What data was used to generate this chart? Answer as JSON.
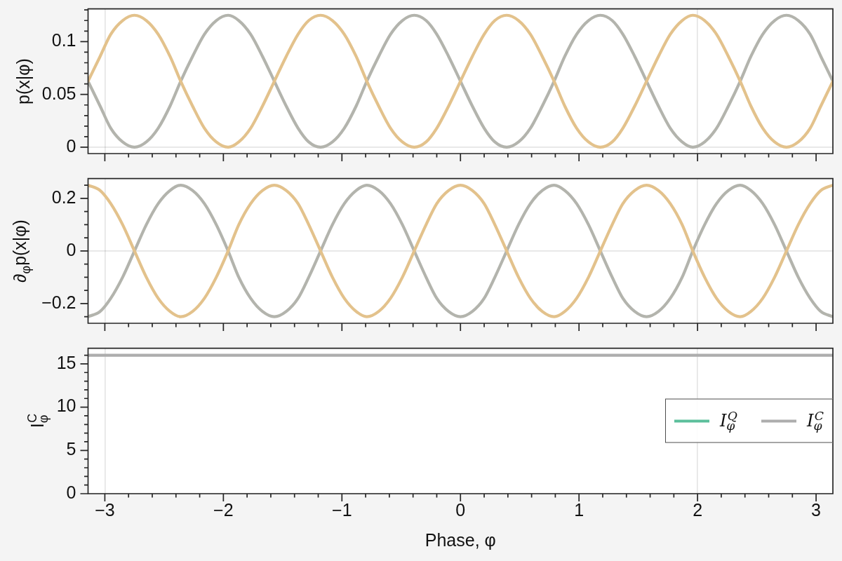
{
  "chart_data": [
    {
      "type": "line",
      "ylabel": "p(x|φ)",
      "x": [
        -3.1416,
        -3.04,
        -2.95,
        -2.85,
        -2.75,
        -2.65,
        -2.55,
        -2.45,
        -2.36,
        -2.26,
        -2.16,
        -2.06,
        -1.96,
        -1.87,
        -1.77,
        -1.67,
        -1.57,
        -1.47,
        -1.37,
        -1.28,
        -1.18,
        -1.08,
        -0.98,
        -0.88,
        -0.79,
        -0.69,
        -0.59,
        -0.49,
        -0.39,
        -0.29,
        -0.2,
        -0.1,
        0,
        0.1,
        0.2,
        0.29,
        0.39,
        0.49,
        0.59,
        0.69,
        0.79,
        0.88,
        0.98,
        1.08,
        1.18,
        1.28,
        1.37,
        1.47,
        1.57,
        1.67,
        1.77,
        1.87,
        1.96,
        2.06,
        2.16,
        2.26,
        2.36,
        2.45,
        2.55,
        2.65,
        2.75,
        2.85,
        2.95,
        3.04,
        3.1416
      ],
      "series": [
        {
          "color": "#e3c28c",
          "values": [
            0.0625,
            0.086,
            0.107,
            0.12,
            0.125,
            0.12,
            0.107,
            0.086,
            0.0625,
            0.039,
            0.018,
            0.005,
            0,
            0.005,
            0.018,
            0.039,
            0.0625,
            0.086,
            0.107,
            0.12,
            0.125,
            0.12,
            0.107,
            0.086,
            0.0625,
            0.039,
            0.018,
            0.005,
            0,
            0.005,
            0.018,
            0.039,
            0.0625,
            0.086,
            0.107,
            0.12,
            0.125,
            0.12,
            0.107,
            0.086,
            0.0625,
            0.039,
            0.018,
            0.005,
            0,
            0.005,
            0.018,
            0.039,
            0.0625,
            0.086,
            0.107,
            0.12,
            0.125,
            0.12,
            0.107,
            0.086,
            0.0625,
            0.039,
            0.018,
            0.005,
            0,
            0.005,
            0.018,
            0.039,
            0.0625
          ]
        },
        {
          "color": "#b3b4ad",
          "values": [
            0.0625,
            0.039,
            0.018,
            0.005,
            0,
            0.005,
            0.018,
            0.039,
            0.0625,
            0.086,
            0.107,
            0.12,
            0.125,
            0.12,
            0.107,
            0.086,
            0.0625,
            0.039,
            0.018,
            0.005,
            0,
            0.005,
            0.018,
            0.039,
            0.0625,
            0.086,
            0.107,
            0.12,
            0.125,
            0.12,
            0.107,
            0.086,
            0.0625,
            0.039,
            0.018,
            0.005,
            0,
            0.005,
            0.018,
            0.039,
            0.0625,
            0.086,
            0.107,
            0.12,
            0.125,
            0.12,
            0.107,
            0.086,
            0.0625,
            0.039,
            0.018,
            0.005,
            0,
            0.005,
            0.018,
            0.039,
            0.0625,
            0.086,
            0.107,
            0.12,
            0.125,
            0.12,
            0.107,
            0.086,
            0.0625
          ]
        }
      ],
      "xlim": [
        -3.1416,
        3.1416
      ],
      "xticks": [
        -3,
        {
          "value": -2.8,
          "label": null
        },
        {
          "value": -2.6,
          "label": null
        },
        {
          "value": -2.4,
          "label": null
        },
        {
          "value": -2.2,
          "label": null
        },
        -2,
        {
          "value": -1.8,
          "label": null
        },
        {
          "value": -1.6,
          "label": null
        },
        {
          "value": -1.4,
          "label": null
        },
        {
          "value": -1.2,
          "label": null
        },
        -1,
        {
          "value": -0.8,
          "label": null
        },
        {
          "value": -0.6,
          "label": null
        },
        {
          "value": -0.4,
          "label": null
        },
        {
          "value": -0.2,
          "label": null
        },
        0,
        {
          "value": 0.2,
          "label": null
        },
        {
          "value": 0.4,
          "label": null
        },
        {
          "value": 0.6,
          "label": null
        },
        {
          "value": 0.8,
          "label": null
        },
        1,
        {
          "value": 1.2,
          "label": null
        },
        {
          "value": 1.4,
          "label": null
        },
        {
          "value": 1.6,
          "label": null
        },
        {
          "value": 1.8,
          "label": null
        },
        2,
        {
          "value": 2.2,
          "label": null
        },
        {
          "value": 2.4,
          "label": null
        },
        {
          "value": 2.6,
          "label": null
        },
        {
          "value": 2.8,
          "label": null
        },
        3
      ],
      "ylim": [
        -0.006,
        0.131
      ],
      "yticks": [
        0,
        {
          "value": 0.01,
          "label": null
        },
        {
          "value": 0.02,
          "label": null
        },
        {
          "value": 0.03,
          "label": null
        },
        {
          "value": 0.04,
          "label": null
        },
        0.05,
        {
          "value": 0.06,
          "label": null
        },
        {
          "value": 0.07,
          "label": null
        },
        {
          "value": 0.08,
          "label": null
        },
        {
          "value": 0.09,
          "label": null
        },
        0.1,
        {
          "value": 0.11,
          "label": null
        },
        {
          "value": 0.12,
          "label": null
        },
        {
          "value": 0.13,
          "label": null
        }
      ],
      "grid": true,
      "tick_labels": "y"
    },
    {
      "type": "line",
      "ylabel": "∂$_{φ}$p(x|φ)",
      "x": [
        -3.1416,
        -3.04,
        -2.95,
        -2.85,
        -2.75,
        -2.65,
        -2.55,
        -2.45,
        -2.36,
        -2.26,
        -2.16,
        -2.06,
        -1.96,
        -1.87,
        -1.77,
        -1.67,
        -1.57,
        -1.47,
        -1.37,
        -1.28,
        -1.18,
        -1.08,
        -0.98,
        -0.88,
        -0.79,
        -0.69,
        -0.59,
        -0.49,
        -0.39,
        -0.29,
        -0.2,
        -0.1,
        0,
        0.1,
        0.2,
        0.29,
        0.39,
        0.49,
        0.59,
        0.69,
        0.79,
        0.88,
        0.98,
        1.08,
        1.18,
        1.28,
        1.37,
        1.47,
        1.57,
        1.67,
        1.77,
        1.87,
        1.96,
        2.06,
        2.16,
        2.26,
        2.36,
        2.45,
        2.55,
        2.65,
        2.75,
        2.85,
        2.95,
        3.04,
        3.1416
      ],
      "series": [
        {
          "color": "#e3c28c",
          "values": [
            0.25,
            0.23,
            0.18,
            0.1,
            0,
            -0.1,
            -0.18,
            -0.23,
            -0.25,
            -0.23,
            -0.18,
            -0.1,
            0,
            0.1,
            0.18,
            0.23,
            0.25,
            0.23,
            0.18,
            0.1,
            0,
            -0.1,
            -0.18,
            -0.23,
            -0.25,
            -0.23,
            -0.18,
            -0.1,
            0,
            0.1,
            0.18,
            0.23,
            0.25,
            0.23,
            0.18,
            0.1,
            0,
            -0.1,
            -0.18,
            -0.23,
            -0.25,
            -0.23,
            -0.18,
            -0.1,
            0,
            0.1,
            0.18,
            0.23,
            0.25,
            0.23,
            0.18,
            0.1,
            0,
            -0.1,
            -0.18,
            -0.23,
            -0.25,
            -0.23,
            -0.18,
            -0.1,
            0,
            0.1,
            0.18,
            0.23,
            0.25
          ]
        },
        {
          "color": "#b3b4ad",
          "values": [
            -0.25,
            -0.23,
            -0.18,
            -0.1,
            0,
            0.1,
            0.18,
            0.23,
            0.25,
            0.23,
            0.18,
            0.1,
            0,
            -0.1,
            -0.18,
            -0.23,
            -0.25,
            -0.23,
            -0.18,
            -0.1,
            0,
            0.1,
            0.18,
            0.23,
            0.25,
            0.23,
            0.18,
            0.1,
            0,
            -0.1,
            -0.18,
            -0.23,
            -0.25,
            -0.23,
            -0.18,
            -0.1,
            0,
            0.1,
            0.18,
            0.23,
            0.25,
            0.23,
            0.18,
            0.1,
            0,
            -0.1,
            -0.18,
            -0.23,
            -0.25,
            -0.23,
            -0.18,
            -0.1,
            0,
            0.1,
            0.18,
            0.23,
            0.25,
            0.23,
            0.18,
            0.1,
            0,
            -0.1,
            -0.18,
            -0.23,
            -0.25
          ]
        }
      ],
      "xlim": [
        -3.1416,
        3.1416
      ],
      "xticks": [
        -3,
        {
          "value": -2.8,
          "label": null
        },
        {
          "value": -2.6,
          "label": null
        },
        {
          "value": -2.4,
          "label": null
        },
        {
          "value": -2.2,
          "label": null
        },
        -2,
        {
          "value": -1.8,
          "label": null
        },
        {
          "value": -1.6,
          "label": null
        },
        {
          "value": -1.4,
          "label": null
        },
        {
          "value": -1.2,
          "label": null
        },
        -1,
        {
          "value": -0.8,
          "label": null
        },
        {
          "value": -0.6,
          "label": null
        },
        {
          "value": -0.4,
          "label": null
        },
        {
          "value": -0.2,
          "label": null
        },
        0,
        {
          "value": 0.2,
          "label": null
        },
        {
          "value": 0.4,
          "label": null
        },
        {
          "value": 0.6,
          "label": null
        },
        {
          "value": 0.8,
          "label": null
        },
        1,
        {
          "value": 1.2,
          "label": null
        },
        {
          "value": 1.4,
          "label": null
        },
        {
          "value": 1.6,
          "label": null
        },
        {
          "value": 1.8,
          "label": null
        },
        2,
        {
          "value": 2.2,
          "label": null
        },
        {
          "value": 2.4,
          "label": null
        },
        {
          "value": 2.6,
          "label": null
        },
        {
          "value": 2.8,
          "label": null
        },
        3
      ],
      "ylim": [
        -0.275,
        0.275
      ],
      "yticks": [
        {
          "value": -0.25,
          "label": null
        },
        {
          "value": -0.2,
          "label": "−0.2"
        },
        {
          "value": -0.15,
          "label": null
        },
        {
          "value": -0.1,
          "label": null
        },
        {
          "value": -0.05,
          "label": null
        },
        0,
        {
          "value": 0.05,
          "label": null
        },
        {
          "value": 0.1,
          "label": null
        },
        {
          "value": 0.15,
          "label": null
        },
        0.2,
        {
          "value": 0.25,
          "label": null
        }
      ],
      "grid": true,
      "tick_labels": "y"
    },
    {
      "type": "line",
      "ylabel": "I$_{φ}$$^{C}$",
      "xlabel": "Phase, φ",
      "x": [
        -3.1416,
        3.1416
      ],
      "series": [
        {
          "name": "I$_{φ}$$^{Q}$",
          "color": "#5cbf9c",
          "values": [
            null,
            null
          ]
        },
        {
          "name": "I$_{φ}$$^{C}$",
          "color": "#adadad",
          "values": [
            16,
            16
          ]
        }
      ],
      "xlim": [
        -3.1416,
        3.1416
      ],
      "xticks": [
        {
          "value": -3,
          "label": "−3"
        },
        {
          "value": -2.8,
          "label": null
        },
        {
          "value": -2.6,
          "label": null
        },
        {
          "value": -2.4,
          "label": null
        },
        {
          "value": -2.2,
          "label": null
        },
        {
          "value": -2,
          "label": "−2"
        },
        {
          "value": -1.8,
          "label": null
        },
        {
          "value": -1.6,
          "label": null
        },
        {
          "value": -1.4,
          "label": null
        },
        {
          "value": -1.2,
          "label": null
        },
        {
          "value": -1,
          "label": "−1"
        },
        {
          "value": -0.8,
          "label": null
        },
        {
          "value": -0.6,
          "label": null
        },
        {
          "value": -0.4,
          "label": null
        },
        {
          "value": -0.2,
          "label": null
        },
        0,
        {
          "value": 0.2,
          "label": null
        },
        {
          "value": 0.4,
          "label": null
        },
        {
          "value": 0.6,
          "label": null
        },
        {
          "value": 0.8,
          "label": null
        },
        1,
        {
          "value": 1.2,
          "label": null
        },
        {
          "value": 1.4,
          "label": null
        },
        {
          "value": 1.6,
          "label": null
        },
        {
          "value": 1.8,
          "label": null
        },
        2,
        {
          "value": 2.2,
          "label": null
        },
        {
          "value": 2.4,
          "label": null
        },
        {
          "value": 2.6,
          "label": null
        },
        {
          "value": 2.8,
          "label": null
        },
        3
      ],
      "ylim": [
        0,
        16.8
      ],
      "yticks": [
        0,
        {
          "value": 1,
          "label": null
        },
        {
          "value": 2,
          "label": null
        },
        {
          "value": 3,
          "label": null
        },
        {
          "value": 4,
          "label": null
        },
        5,
        {
          "value": 6,
          "label": null
        },
        {
          "value": 7,
          "label": null
        },
        {
          "value": 8,
          "label": null
        },
        {
          "value": 9,
          "label": null
        },
        10,
        {
          "value": 11,
          "label": null
        },
        {
          "value": 12,
          "label": null
        },
        {
          "value": 13,
          "label": null
        },
        {
          "value": 14,
          "label": null
        },
        15,
        {
          "value": 16,
          "label": null
        }
      ],
      "grid": true,
      "legend": "right"
    }
  ]
}
